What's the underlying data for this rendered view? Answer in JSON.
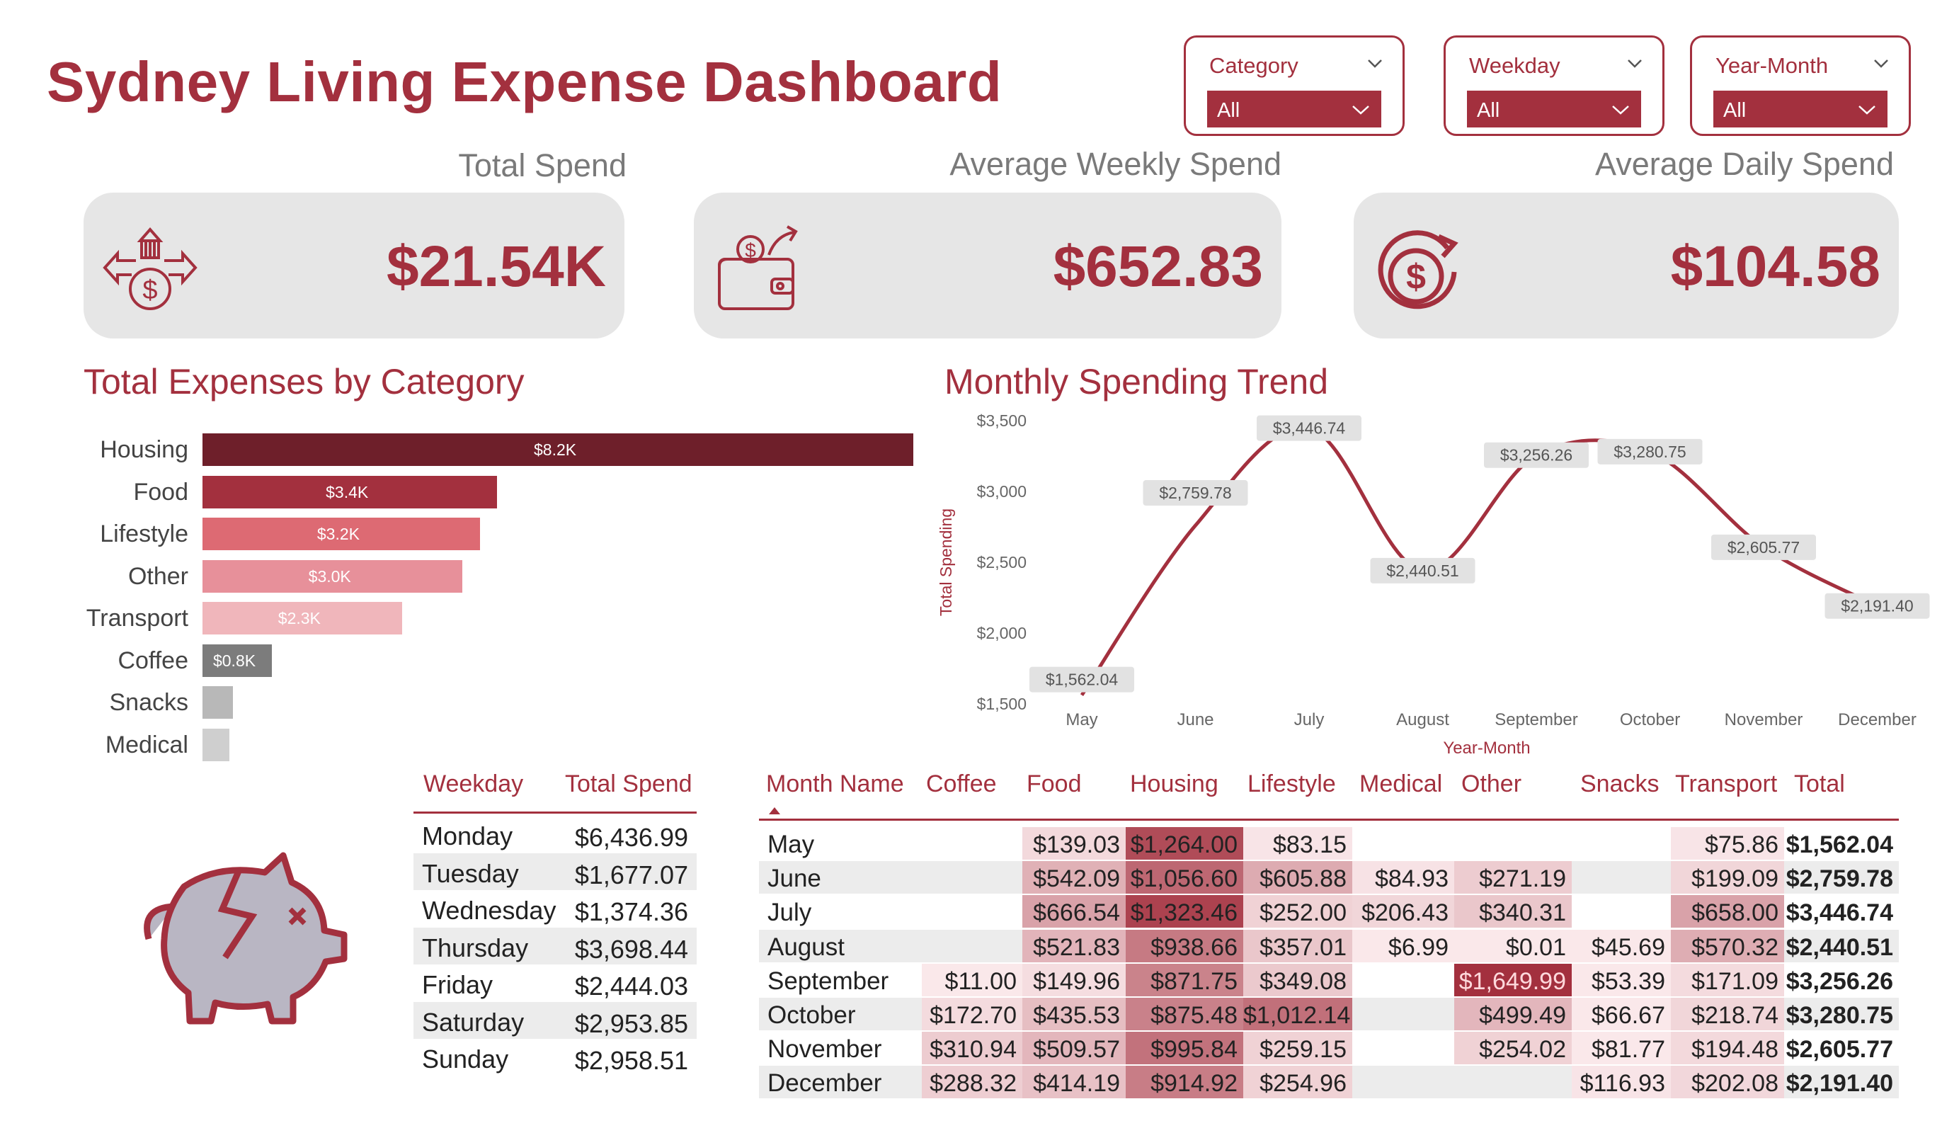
{
  "header": {
    "title": "Sydney Living Expense Dashboard"
  },
  "slicers": [
    {
      "label": "Category",
      "value": "All"
    },
    {
      "label": "Weekday",
      "value": "All"
    },
    {
      "label": "Year-Month",
      "value": "All"
    }
  ],
  "kpis": [
    {
      "label": "Total Spend",
      "value": "$21.54K",
      "icon": "money-distribution-icon"
    },
    {
      "label": "Average Weekly Spend",
      "value": "$652.83",
      "icon": "wallet-icon"
    },
    {
      "label": "Average Daily Spend",
      "value": "$104.58",
      "icon": "dollar-cycle-icon"
    }
  ],
  "category_chart": {
    "title": "Total Expenses by Category",
    "items": [
      {
        "name": "Housing",
        "value": 8.2,
        "label": "$8.2K",
        "color": "#6e1f2a"
      },
      {
        "name": "Food",
        "value": 3.4,
        "label": "$3.4K",
        "color": "#a3303e"
      },
      {
        "name": "Lifestyle",
        "value": 3.2,
        "label": "$3.2K",
        "color": "#dd6a73"
      },
      {
        "name": "Other",
        "value": 3.0,
        "label": "$3.0K",
        "color": "#e7909a"
      },
      {
        "name": "Transport",
        "value": 2.3,
        "label": "$2.3K",
        "color": "#f0b6bb"
      },
      {
        "name": "Coffee",
        "value": 0.8,
        "label": "$0.8K",
        "color": "#7c7c7c"
      },
      {
        "name": "Snacks",
        "value": 0.35,
        "label": "",
        "color": "#b8b8b8"
      },
      {
        "name": "Medical",
        "value": 0.3,
        "label": "",
        "color": "#cfcfcf"
      }
    ]
  },
  "chart_data": {
    "type": "line",
    "title": "Monthly Spending Trend",
    "xlabel": "Year-Month",
    "ylabel": "Total Spending",
    "categories": [
      "May",
      "June",
      "July",
      "August",
      "September",
      "October",
      "November",
      "December"
    ],
    "values": [
      1562.04,
      2759.78,
      3446.74,
      2440.51,
      3256.26,
      3280.75,
      2605.77,
      2191.4
    ],
    "data_labels": [
      "$1,562.04",
      "$2,759.78",
      "$3,446.74",
      "$2,440.51",
      "$3,256.26",
      "$3,280.75",
      "$2,605.77",
      "$2,191.40"
    ],
    "yticks": [
      "$1,500",
      "$2,000",
      "$2,500",
      "$3,000",
      "$3,500"
    ],
    "ylim": [
      1500,
      3500
    ],
    "color": "#a3303e"
  },
  "weekday_table": {
    "headers": [
      "Weekday",
      "Total Spend"
    ],
    "rows": [
      [
        "Monday",
        "$6,436.99"
      ],
      [
        "Tuesday",
        "$1,677.07"
      ],
      [
        "Wednesday",
        "$1,374.36"
      ],
      [
        "Thursday",
        "$3,698.44"
      ],
      [
        "Friday",
        "$2,444.03"
      ],
      [
        "Saturday",
        "$2,953.85"
      ],
      [
        "Sunday",
        "$2,958.51"
      ]
    ]
  },
  "matrix": {
    "headers": [
      "Month Name",
      "Coffee",
      "Food",
      "Housing",
      "Lifestyle",
      "Medical",
      "Other",
      "Snacks",
      "Transport",
      "Total"
    ],
    "rows": [
      {
        "month": "May",
        "cells": [
          "",
          "$139.03",
          "$1,264.00",
          "$83.15",
          "",
          "",
          "",
          "$75.86",
          "$1,562.04"
        ],
        "shade": [
          0,
          0.08,
          0.85,
          0.02,
          0,
          0,
          0,
          0.02,
          0
        ]
      },
      {
        "month": "June",
        "cells": [
          "",
          "$542.09",
          "$1,056.60",
          "$605.88",
          "$84.93",
          "$271.19",
          "",
          "$199.09",
          "$2,759.78"
        ],
        "shade": [
          0,
          0.3,
          0.7,
          0.33,
          0.03,
          0.15,
          0,
          0.1,
          0
        ]
      },
      {
        "month": "July",
        "cells": [
          "",
          "$666.54",
          "$1,323.46",
          "$252.00",
          "$206.43",
          "$340.31",
          "",
          "$658.00",
          "$3,446.74"
        ],
        "shade": [
          0,
          0.38,
          0.9,
          0.12,
          0.1,
          0.18,
          0,
          0.38,
          0
        ]
      },
      {
        "month": "August",
        "cells": [
          "",
          "$521.83",
          "$938.66",
          "$357.01",
          "$6.99",
          "$0.01",
          "$45.69",
          "$570.32",
          "$2,440.51"
        ],
        "shade": [
          0,
          0.28,
          0.6,
          0.18,
          0,
          0,
          0,
          0.32,
          0
        ]
      },
      {
        "month": "September",
        "cells": [
          "$11.00",
          "$149.96",
          "$871.75",
          "$349.08",
          "",
          "$1,649.99",
          "$53.39",
          "$171.09",
          "$3,256.26"
        ],
        "shade": [
          0,
          0.06,
          0.55,
          0.17,
          0,
          1.0,
          0,
          0.07,
          0
        ]
      },
      {
        "month": "October",
        "cells": [
          "$172.70",
          "$435.53",
          "$875.48",
          "$1,012.14",
          "",
          "$499.49",
          "$66.67",
          "$218.74",
          "$3,280.75"
        ],
        "shade": [
          0.07,
          0.23,
          0.56,
          0.65,
          0,
          0.27,
          0,
          0.1,
          0
        ]
      },
      {
        "month": "November",
        "cells": [
          "$310.94",
          "$509.57",
          "$995.84",
          "$259.15",
          "",
          "$254.02",
          "$81.77",
          "$194.48",
          "$2,605.77"
        ],
        "shade": [
          0.15,
          0.27,
          0.64,
          0.12,
          0,
          0.12,
          0,
          0.08,
          0
        ]
      },
      {
        "month": "December",
        "cells": [
          "$288.32",
          "$414.19",
          "$914.92",
          "$254.96",
          "",
          "",
          "$116.93",
          "$202.08",
          "$2,191.40"
        ],
        "shade": [
          0.14,
          0.21,
          0.58,
          0.12,
          0,
          0,
          0.02,
          0.09,
          0
        ]
      }
    ]
  }
}
